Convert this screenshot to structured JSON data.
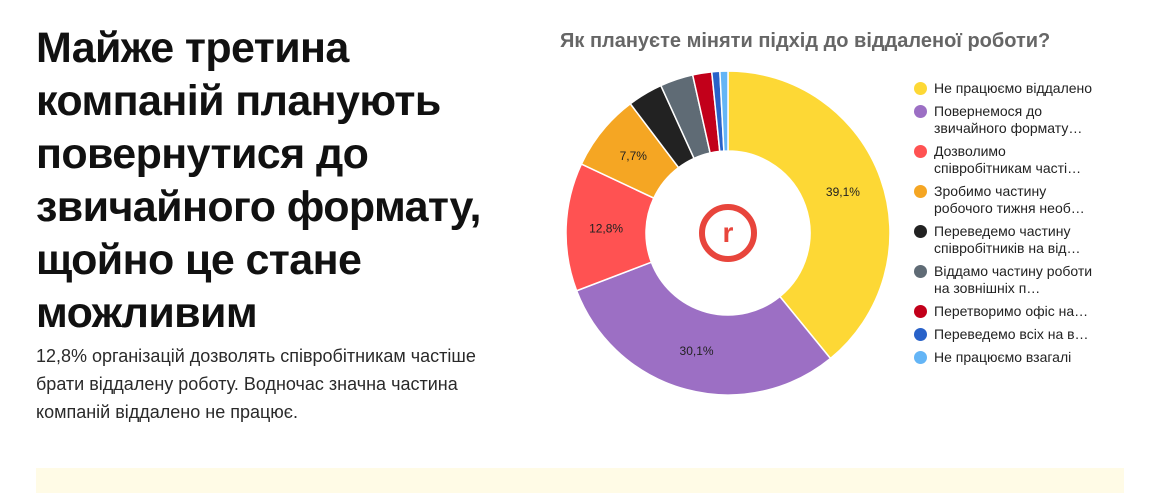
{
  "headline": "Майже третина компаній планують повернутися до звичайного формату, щойно це стане можливим",
  "lead": "12,8% організацій дозволять співробітникам частіше брати віддалену роботу. Водночас значна частина компаній віддалено не працює.",
  "chart_data": {
    "type": "pie",
    "donut": true,
    "title": "Як плануєте міняти підхід до віддаленої роботи?",
    "legend_position": "right",
    "center_logo": "r",
    "center_logo_color": "#e8453c",
    "series": [
      {
        "name": "Не працюємо віддалено",
        "value": 39.1,
        "label": "39,1%",
        "color": "#fdd835"
      },
      {
        "name": "Повернемося до звичайного формату…",
        "value": 30.1,
        "label": "30,1%",
        "color": "#9c6fc4"
      },
      {
        "name": "Дозволимо співробітникам часті…",
        "value": 12.8,
        "label": "12,8%",
        "color": "#ff5252"
      },
      {
        "name": "Зробимо частину робочого тижня необ…",
        "value": 7.7,
        "label": "7,7%",
        "color": "#f5a623"
      },
      {
        "name": "Переведемо частину співробітників на від…",
        "value": 3.5,
        "label": "",
        "color": "#222222"
      },
      {
        "name": "Віддамо частину роботи на зовнішніх п…",
        "value": 3.3,
        "label": "",
        "color": "#5f6b75"
      },
      {
        "name": "Перетворимо офіс на…",
        "value": 1.9,
        "label": "",
        "color": "#c2001a"
      },
      {
        "name": "Переведемо всіх на в…",
        "value": 0.8,
        "label": "",
        "color": "#2962c9"
      },
      {
        "name": "Не працюємо взагалі",
        "value": 0.8,
        "label": "",
        "color": "#64b5f6"
      }
    ]
  }
}
